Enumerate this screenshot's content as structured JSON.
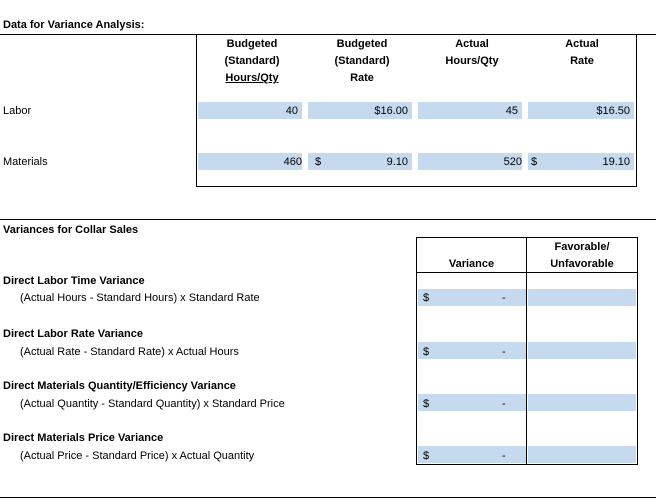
{
  "data_section": {
    "title": "Data for Variance Analysis:",
    "columns": [
      {
        "line1": "Budgeted",
        "line2": "(Standard)",
        "line3": "Hours/Qty"
      },
      {
        "line1": "Budgeted",
        "line2": "(Standard)",
        "line3": "Rate"
      },
      {
        "line1": "Actual",
        "line2": "Hours/Qty"
      },
      {
        "line1": "Actual",
        "line2": "Rate"
      }
    ],
    "rows": [
      {
        "label": "Labor",
        "std_qty": "40",
        "std_rate_symbol": "",
        "std_rate": "$16.00",
        "act_qty": "45",
        "act_rate_symbol": "",
        "act_rate": "$16.50"
      },
      {
        "label": "Materials",
        "std_qty": "460",
        "std_rate_symbol": "$",
        "std_rate": "9.10",
        "act_qty": "520",
        "act_rate_symbol": "$",
        "act_rate": "19.10"
      }
    ]
  },
  "variance_section": {
    "title": "Variances for Collar Sales",
    "variance_header": "Variance",
    "fav_header_line1": "Favorable/",
    "fav_header_line2": "Unfavorable",
    "items": [
      {
        "name": "Direct Labor Time Variance",
        "formula": "(Actual Hours - Standard Hours) x Standard Rate",
        "symbol": "$",
        "value": "-",
        "fav": ""
      },
      {
        "name": "Direct Labor Rate Variance",
        "formula": "(Actual Rate - Standard Rate) x Actual Hours",
        "symbol": "$",
        "value": "-",
        "fav": ""
      },
      {
        "name": "Direct Materials Quantity/Efficiency Variance",
        "formula": "(Actual Quantity - Standard Quantity) x Standard Price",
        "symbol": "$",
        "value": "-",
        "fav": ""
      },
      {
        "name": "Direct Materials Price Variance",
        "formula": "(Actual Price - Standard Price) x Actual Quantity",
        "symbol": "$",
        "value": "-",
        "fav": ""
      }
    ]
  },
  "colors": {
    "highlight": "#c5daef",
    "border": "#000000"
  }
}
